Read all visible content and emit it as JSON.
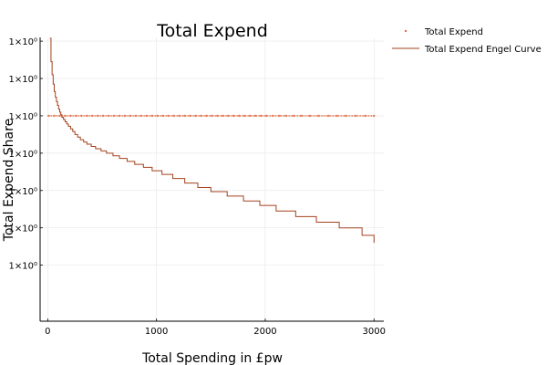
{
  "chart_data": {
    "type": "scatter",
    "title": "Total Expend",
    "xlabel": "Total Spending in £pw",
    "ylabel": "Total Expend Share",
    "x_ticks": [
      0,
      1000,
      2000,
      3000
    ],
    "x_tick_labels": [
      "0",
      "1000",
      "2000",
      "3000"
    ],
    "xlim": [
      -70,
      3090
    ],
    "ylim": [
      0.9945,
      1.0021
    ],
    "y_tick_values": [
      1.002,
      1.001,
      1.0,
      0.999,
      0.998,
      0.997,
      0.996
    ],
    "y_tick_labels": [
      "1×10⁰",
      "1×10⁰",
      "1×10⁰",
      "1×10⁰",
      "1×10⁰",
      "1×10⁰",
      "1×10⁰"
    ],
    "grid": true,
    "legend_position": "outer-top-right",
    "series": [
      {
        "name": "Total Expend",
        "kind": "scatter",
        "color": "#e26f46",
        "constant_y": 1.0,
        "x_range": [
          0,
          3000
        ],
        "x": [
          10,
          60,
          110,
          160,
          210,
          260,
          310,
          360,
          410,
          460,
          510,
          560,
          610,
          660,
          710,
          760,
          810,
          860,
          910,
          960,
          1010,
          1060,
          1110,
          1160,
          1210,
          1260,
          1310,
          1360,
          1410,
          1460,
          1510,
          1560,
          1610,
          1660,
          1710,
          1760,
          1810,
          1860,
          1910,
          1960,
          2010,
          2070,
          2130,
          2190,
          2260,
          2330,
          2410,
          2490,
          2580,
          2660,
          2740,
          2830,
          2920,
          3000
        ]
      },
      {
        "name": "Total Expend Engel Curve",
        "kind": "step",
        "color": "#a3421e",
        "x": [
          20,
          30,
          40,
          50,
          60,
          70,
          80,
          90,
          100,
          110,
          120,
          130,
          145,
          160,
          175,
          190,
          210,
          230,
          250,
          275,
          300,
          330,
          360,
          400,
          440,
          490,
          540,
          600,
          660,
          730,
          800,
          880,
          960,
          1050,
          1150,
          1260,
          1380,
          1500,
          1650,
          1800,
          1950,
          2100,
          2280,
          2470,
          2680,
          2890,
          3000
        ],
        "y": [
          1.00208,
          1.00145,
          1.0011,
          1.00085,
          1.00065,
          1.0005,
          1.00038,
          1.00028,
          1.00018,
          1.0001,
          1.00003,
          0.99996,
          0.9999,
          0.99984,
          0.99978,
          0.99972,
          0.99965,
          0.99958,
          0.9995,
          0.99943,
          0.99936,
          0.9993,
          0.99924,
          0.99918,
          0.99912,
          0.99906,
          0.999,
          0.99893,
          0.99886,
          0.99878,
          0.9987,
          0.99862,
          0.99853,
          0.99843,
          0.99832,
          0.9982,
          0.99808,
          0.99797,
          0.99785,
          0.99772,
          0.9976,
          0.99745,
          0.9973,
          0.99715,
          0.997,
          0.9968,
          0.9966
        ]
      }
    ]
  }
}
